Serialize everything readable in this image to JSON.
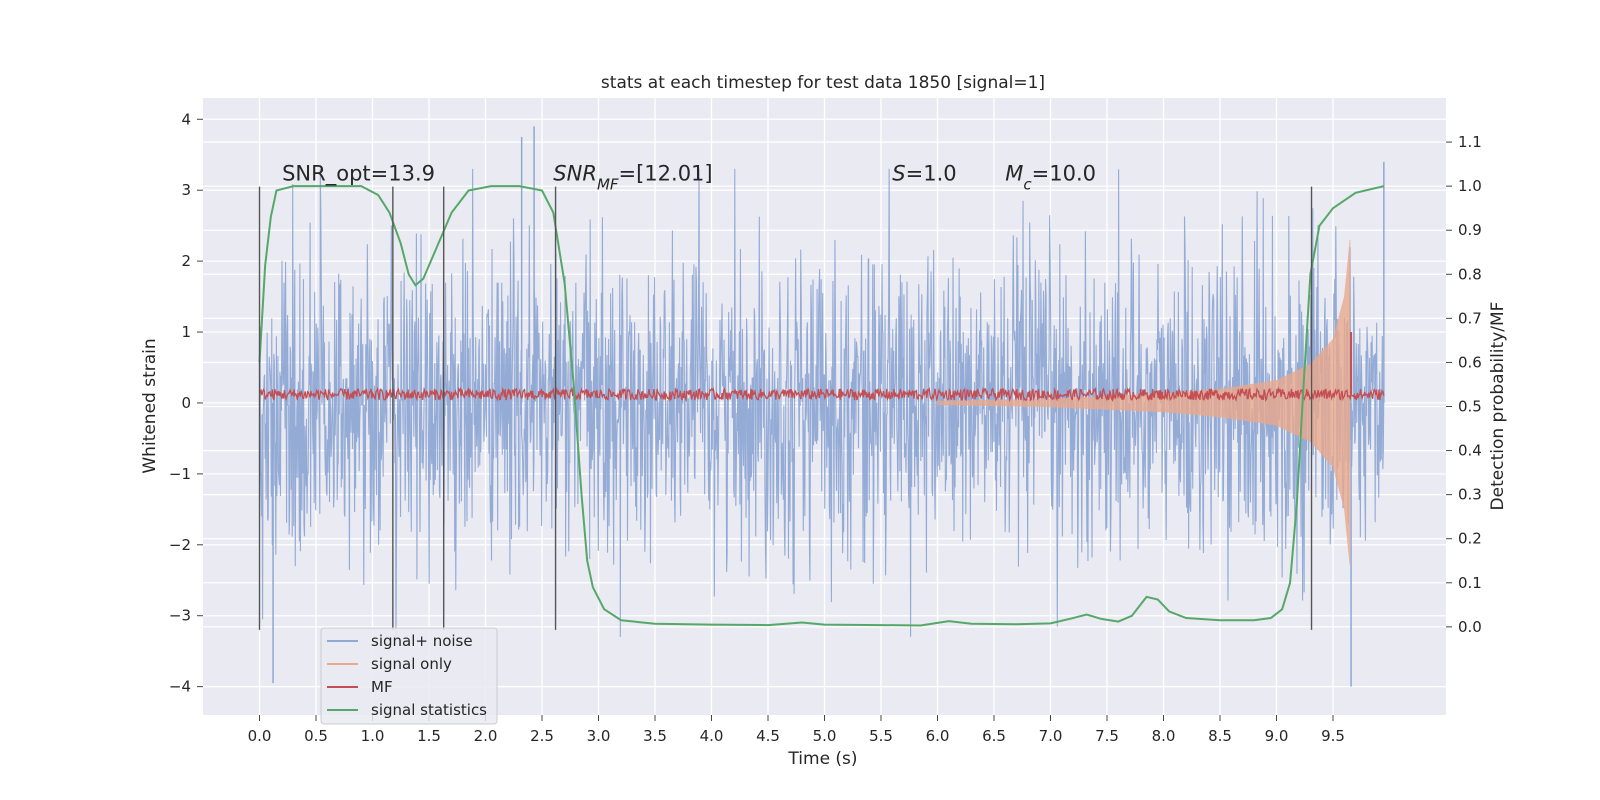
{
  "chart_data": {
    "type": "line",
    "title": "stats at each timestep for test data 1850 [signal=1]",
    "xlabel": "Time (s)",
    "ylabel_left": "Whitened strain",
    "ylabel_right": "Detection probability/MF",
    "xlim": [
      -0.5,
      10.5
    ],
    "ylim_left": [
      -4.4,
      4.3
    ],
    "ylim_right": [
      -0.2,
      1.2
    ],
    "xticks": [
      "0.0",
      "0.5",
      "1.0",
      "1.5",
      "2.0",
      "2.5",
      "3.0",
      "3.5",
      "4.0",
      "4.5",
      "5.0",
      "5.5",
      "6.0",
      "6.5",
      "7.0",
      "7.5",
      "8.0",
      "8.5",
      "9.0",
      "9.5"
    ],
    "xtick_values": [
      0,
      0.5,
      1,
      1.5,
      2,
      2.5,
      3,
      3.5,
      4,
      4.5,
      5,
      5.5,
      6,
      6.5,
      7,
      7.5,
      8,
      8.5,
      9,
      9.5
    ],
    "yticks_left": [
      "−4",
      "−3",
      "−2",
      "−1",
      "0",
      "1",
      "2",
      "3",
      "4"
    ],
    "ytick_values_left": [
      -4,
      -3,
      -2,
      -1,
      0,
      1,
      2,
      3,
      4
    ],
    "yticks_right": [
      "0.0",
      "0.1",
      "0.2",
      "0.3",
      "0.4",
      "0.5",
      "0.6",
      "0.7",
      "0.8",
      "0.9",
      "1.0",
      "1.1"
    ],
    "ytick_values_right": [
      0,
      0.1,
      0.2,
      0.3,
      0.4,
      0.5,
      0.6,
      0.7,
      0.8,
      0.9,
      1.0,
      1.1
    ],
    "grid": true,
    "legend_position": "lower-left",
    "annotations": [
      {
        "prefix": "SNR_opt=13.9",
        "sub": "",
        "suffix": "",
        "x": 0.2
      },
      {
        "prefix": "SNR",
        "sub": "MF",
        "suffix": "=[12.01]",
        "x": 2.6
      },
      {
        "prefix": "S",
        "sub": "",
        "suffix": "=1.0",
        "x": 5.6
      },
      {
        "prefix": "M",
        "sub": "c",
        "suffix": "=10.0",
        "x": 6.6
      }
    ],
    "annotation_y_left": 3.05,
    "vertical_lines_x": [
      0.0,
      1.18,
      1.63,
      2.62,
      9.31
    ],
    "vertical_lines_y_range": [
      -3.2,
      3.05
    ],
    "series": [
      {
        "name": "signal+ noise",
        "color": "#8fa8d4",
        "axis": "left",
        "x_range": [
          0.0,
          9.95
        ],
        "noise_std": 1.05,
        "peak_values": [
          {
            "x": 0.12,
            "y": -3.95
          },
          {
            "x": 2.32,
            "y": 3.75
          },
          {
            "x": 2.43,
            "y": 3.9
          },
          {
            "x": 9.66,
            "y": -4.0
          },
          {
            "x": 9.95,
            "y": 3.4
          }
        ]
      },
      {
        "name": "signal only",
        "color": "#e8a98c",
        "axis": "left",
        "chirp_start": 6.0,
        "chirp_end": 9.65,
        "amplitude_start": 0.03,
        "amplitude_end": 2.3,
        "amplitude_envelope": [
          {
            "x": 6.0,
            "y": 0.03
          },
          {
            "x": 7.0,
            "y": 0.06
          },
          {
            "x": 8.0,
            "y": 0.13
          },
          {
            "x": 8.5,
            "y": 0.2
          },
          {
            "x": 9.0,
            "y": 0.32
          },
          {
            "x": 9.3,
            "y": 0.55
          },
          {
            "x": 9.5,
            "y": 0.9
          },
          {
            "x": 9.6,
            "y": 1.5
          },
          {
            "x": 9.65,
            "y": 2.3
          }
        ]
      },
      {
        "name": "MF",
        "color": "#c44e52",
        "axis": "left",
        "baseline": 0.12,
        "ripple": 0.08,
        "spike_x": 9.66,
        "spike_y": 1.0,
        "x_range": [
          0.0,
          9.95
        ]
      },
      {
        "name": "signal statistics",
        "color": "#55a868",
        "axis": "right",
        "points": [
          {
            "x": 0.0,
            "y": 0.6
          },
          {
            "x": 0.05,
            "y": 0.82
          },
          {
            "x": 0.1,
            "y": 0.93
          },
          {
            "x": 0.15,
            "y": 0.99
          },
          {
            "x": 0.3,
            "y": 1.0
          },
          {
            "x": 0.6,
            "y": 1.0
          },
          {
            "x": 0.9,
            "y": 1.0
          },
          {
            "x": 1.05,
            "y": 0.98
          },
          {
            "x": 1.15,
            "y": 0.94
          },
          {
            "x": 1.25,
            "y": 0.87
          },
          {
            "x": 1.32,
            "y": 0.8
          },
          {
            "x": 1.38,
            "y": 0.775
          },
          {
            "x": 1.45,
            "y": 0.79
          },
          {
            "x": 1.55,
            "y": 0.85
          },
          {
            "x": 1.7,
            "y": 0.94
          },
          {
            "x": 1.85,
            "y": 0.99
          },
          {
            "x": 2.05,
            "y": 1.0
          },
          {
            "x": 2.3,
            "y": 1.0
          },
          {
            "x": 2.5,
            "y": 0.99
          },
          {
            "x": 2.6,
            "y": 0.94
          },
          {
            "x": 2.7,
            "y": 0.78
          },
          {
            "x": 2.78,
            "y": 0.55
          },
          {
            "x": 2.85,
            "y": 0.3
          },
          {
            "x": 2.9,
            "y": 0.15
          },
          {
            "x": 2.95,
            "y": 0.09
          },
          {
            "x": 3.05,
            "y": 0.04
          },
          {
            "x": 3.2,
            "y": 0.015
          },
          {
            "x": 3.5,
            "y": 0.007
          },
          {
            "x": 4.0,
            "y": 0.005
          },
          {
            "x": 4.5,
            "y": 0.004
          },
          {
            "x": 4.8,
            "y": 0.01
          },
          {
            "x": 5.0,
            "y": 0.005
          },
          {
            "x": 5.5,
            "y": 0.004
          },
          {
            "x": 5.85,
            "y": 0.003
          },
          {
            "x": 6.1,
            "y": 0.013
          },
          {
            "x": 6.3,
            "y": 0.007
          },
          {
            "x": 6.7,
            "y": 0.006
          },
          {
            "x": 7.0,
            "y": 0.008
          },
          {
            "x": 7.2,
            "y": 0.02
          },
          {
            "x": 7.32,
            "y": 0.028
          },
          {
            "x": 7.45,
            "y": 0.018
          },
          {
            "x": 7.6,
            "y": 0.012
          },
          {
            "x": 7.72,
            "y": 0.025
          },
          {
            "x": 7.85,
            "y": 0.068
          },
          {
            "x": 7.95,
            "y": 0.062
          },
          {
            "x": 8.05,
            "y": 0.035
          },
          {
            "x": 8.2,
            "y": 0.02
          },
          {
            "x": 8.5,
            "y": 0.015
          },
          {
            "x": 8.8,
            "y": 0.015
          },
          {
            "x": 8.95,
            "y": 0.02
          },
          {
            "x": 9.05,
            "y": 0.04
          },
          {
            "x": 9.12,
            "y": 0.1
          },
          {
            "x": 9.18,
            "y": 0.28
          },
          {
            "x": 9.24,
            "y": 0.55
          },
          {
            "x": 9.3,
            "y": 0.8
          },
          {
            "x": 9.38,
            "y": 0.91
          },
          {
            "x": 9.5,
            "y": 0.95
          },
          {
            "x": 9.7,
            "y": 0.985
          },
          {
            "x": 9.95,
            "y": 1.0
          }
        ]
      }
    ]
  }
}
